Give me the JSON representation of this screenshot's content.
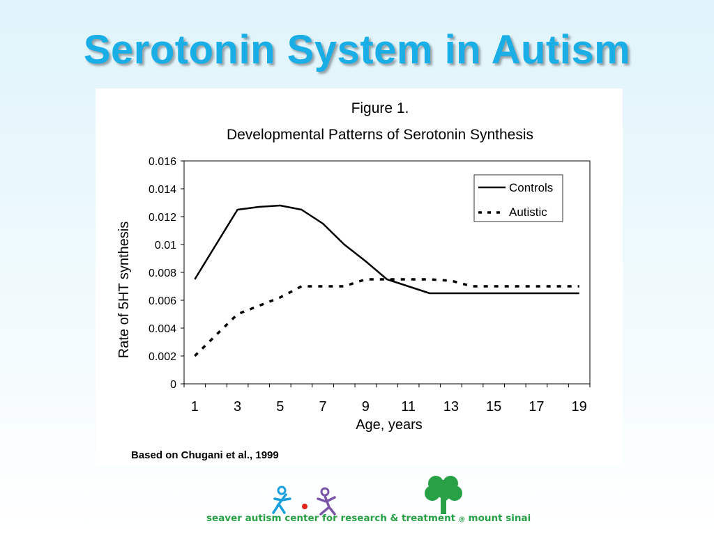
{
  "slide": {
    "title": "Serotonin System in Autism"
  },
  "chart_data": {
    "type": "line",
    "title": "Figure 1.",
    "subtitle": "Developmental Patterns of Serotonin Synthesis",
    "xlabel": "Age, years",
    "ylabel": "Rate of 5HT synthesis",
    "xlim": [
      1,
      19
    ],
    "ylim": [
      0,
      0.016
    ],
    "x_tick_labels": [
      "1",
      "3",
      "5",
      "7",
      "9",
      "11",
      "13",
      "15",
      "17",
      "19"
    ],
    "y_tick_labels": [
      "0",
      "0.002",
      "0.004",
      "0.006",
      "0.008",
      "0.01",
      "0.012",
      "0.014",
      "0.016"
    ],
    "legend_position": "top-right",
    "grid": false,
    "series": [
      {
        "name": "Controls",
        "style": "solid",
        "color": "#000000",
        "points": [
          [
            1,
            0.0075
          ],
          [
            2,
            0.01
          ],
          [
            3,
            0.0125
          ],
          [
            4,
            0.0127
          ],
          [
            5,
            0.0128
          ],
          [
            6,
            0.0125
          ],
          [
            7,
            0.0115
          ],
          [
            8,
            0.01
          ],
          [
            9,
            0.0088
          ],
          [
            10,
            0.0075
          ],
          [
            11,
            0.007
          ],
          [
            12,
            0.0065
          ],
          [
            13,
            0.0065
          ],
          [
            14,
            0.0065
          ],
          [
            15,
            0.0065
          ],
          [
            16,
            0.0065
          ],
          [
            17,
            0.0065
          ],
          [
            18,
            0.0065
          ],
          [
            19,
            0.0065
          ]
        ]
      },
      {
        "name": "Autistic",
        "style": "dashed",
        "color": "#000000",
        "points": [
          [
            1,
            0.002
          ],
          [
            2,
            0.0035
          ],
          [
            3,
            0.005
          ],
          [
            4,
            0.0056
          ],
          [
            5,
            0.0062
          ],
          [
            6,
            0.007
          ],
          [
            7,
            0.007
          ],
          [
            8,
            0.007
          ],
          [
            9,
            0.0075
          ],
          [
            10,
            0.0075
          ],
          [
            11,
            0.0075
          ],
          [
            12,
            0.0075
          ],
          [
            13,
            0.0074
          ],
          [
            14,
            0.007
          ],
          [
            15,
            0.007
          ],
          [
            16,
            0.007
          ],
          [
            17,
            0.007
          ],
          [
            18,
            0.007
          ],
          [
            19,
            0.007
          ]
        ]
      }
    ]
  },
  "citation": "Based on Chugani et al., 1999",
  "logo": {
    "text_part1": "seaver autism center for research & treatment",
    "text_at": "@",
    "text_part2": "mount sinai",
    "color_blue": "#1a9fdc",
    "color_purple": "#7a55a8",
    "color_green": "#27a046",
    "color_red": "#e2231a"
  }
}
